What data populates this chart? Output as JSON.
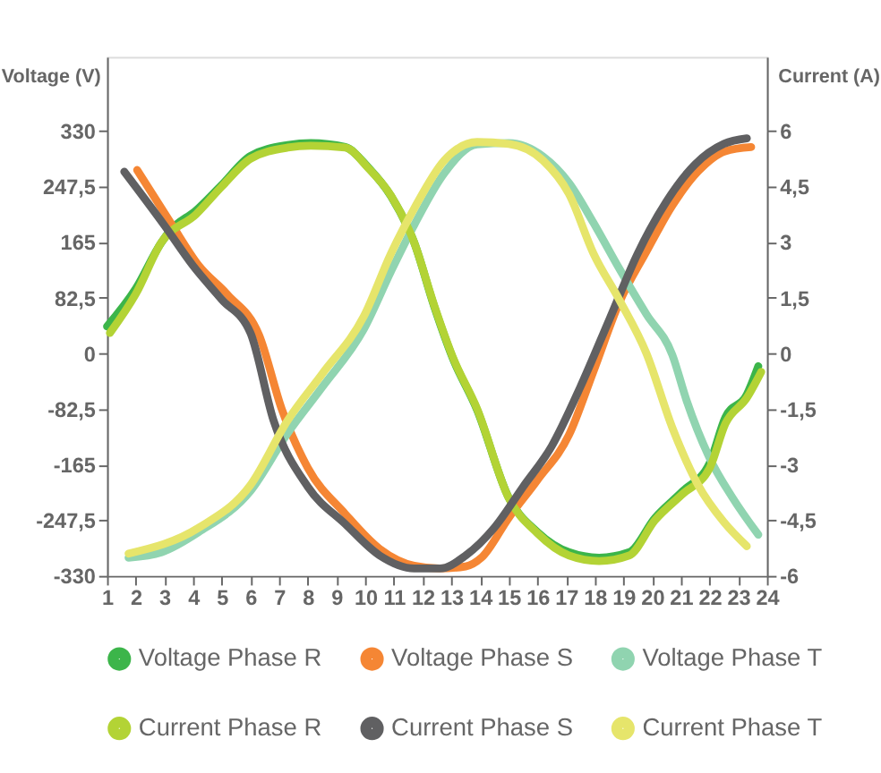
{
  "chart_data": {
    "type": "line",
    "ylabel": "Voltage (V)",
    "y2label": "Current (A)",
    "xlim": [
      1,
      24
    ],
    "xticks": [
      1,
      2,
      3,
      4,
      5,
      6,
      7,
      8,
      9,
      10,
      11,
      12,
      13,
      14,
      15,
      16,
      17,
      18,
      19,
      20,
      21,
      22,
      23,
      24
    ],
    "ylim": [
      -330,
      440
    ],
    "yticks": [
      -330,
      {
        "value": -247.5,
        "label": "-247,5"
      },
      -165,
      {
        "value": -82.5,
        "label": "-82,5"
      },
      0,
      {
        "value": 82.5,
        "label": "82,5"
      },
      165,
      {
        "value": 247.5,
        "label": "247,5"
      },
      330
    ],
    "y2lim": [
      -6,
      8
    ],
    "y2ticks": [
      -6,
      {
        "value": -4.5,
        "label": "-4,5"
      },
      -3,
      {
        "value": -1.5,
        "label": "-1,5"
      },
      0,
      {
        "value": 1.5,
        "label": "1,5"
      },
      3,
      {
        "value": 4.5,
        "label": "4,5"
      },
      6
    ],
    "grid": "y",
    "legend": "bottom",
    "marker": "none",
    "line_style": "solid",
    "series": [
      {
        "name": "Voltage Phase R",
        "color": "#3cb54a",
        "x": [
          1,
          2,
          2.9,
          3.2,
          4.1,
          5,
          6,
          7.3,
          8.1,
          9.3,
          10.1,
          10.9,
          11.7,
          12.4,
          13.05,
          13.9,
          15,
          16,
          17.1,
          18.15,
          19.2,
          20.1,
          21.05,
          22,
          22.55,
          23.3,
          23.7
        ],
        "values": [
          40,
          96,
          165,
          182,
          212,
          250,
          293,
          309,
          312,
          306,
          276,
          233,
          165,
          70,
          -7,
          -84,
          -214,
          -265,
          -295,
          -303,
          -295,
          -244,
          -205,
          -163,
          -95,
          -61,
          -19
        ]
      },
      {
        "name": "Voltage Phase S",
        "color": "#f58634",
        "x": [
          2.05,
          3.2,
          4.2,
          5.2,
          6.3,
          7.1,
          8,
          9.3,
          10.5,
          11.7,
          12.6,
          13.5,
          14.05,
          15,
          16,
          17.1,
          17.95,
          18.85,
          19.8,
          20.7,
          21.6,
          22.55,
          23.45
        ],
        "values": [
          272,
          195,
          130,
          87,
          27,
          -84,
          -170,
          -238,
          -290,
          -315,
          -319,
          -316,
          -303,
          -244,
          -188,
          -121,
          -27,
          75,
          151,
          219,
          270,
          300,
          306
        ]
      },
      {
        "name": "Voltage Phase T",
        "color": "#90d4b0",
        "x": [
          1.75,
          2.9,
          4.2,
          6,
          7.3,
          8.5,
          9.95,
          10.9,
          11.7,
          12.75,
          13.9,
          15,
          16.2,
          17.1,
          17.95,
          18.85,
          19.8,
          20.7,
          21.2,
          22,
          22.8,
          23.7
        ],
        "values": [
          -303,
          -295,
          -265,
          -204,
          -118,
          -50,
          36,
          122,
          190,
          267,
          310,
          312,
          292,
          253,
          194,
          126,
          58,
          -2,
          -70,
          -155,
          -214,
          -269
        ]
      },
      {
        "name": "Current Phase R",
        "color": "#b3d335",
        "axis": "y2",
        "x": [
          1.1,
          2,
          2.9,
          4.1,
          5,
          6,
          7.3,
          8.1,
          9.3,
          10.1,
          10.9,
          11.7,
          12.4,
          13.05,
          13.9,
          15,
          16,
          17.1,
          18.15,
          19.2,
          20.1,
          21.05,
          22,
          22.55,
          23.3,
          23.8
        ],
        "values": [
          0.55,
          1.6,
          3,
          3.75,
          4.5,
          5.25,
          5.55,
          5.6,
          5.55,
          5,
          4.25,
          3,
          1.3,
          -0.1,
          -1.5,
          -3.9,
          -4.85,
          -5.45,
          -5.6,
          -5.45,
          -4.5,
          -3.8,
          -3.1,
          -1.9,
          -1.2,
          -0.5
        ]
      },
      {
        "name": "Current Phase S",
        "color": "#606062",
        "axis": "y2",
        "x": [
          1.6,
          3,
          4,
          5,
          6,
          6.8,
          8,
          9.3,
          10.5,
          11.7,
          12.6,
          13.5,
          14.5,
          15.5,
          16.5,
          17.5,
          18.5,
          19.5,
          20.5,
          21.5,
          22.5,
          23.3
        ],
        "values": [
          4.9,
          3.45,
          2.36,
          1.45,
          0.55,
          -1.8,
          -3.6,
          -4.6,
          -5.45,
          -5.8,
          -5.8,
          -5.45,
          -4.7,
          -3.6,
          -2.5,
          -0.9,
          0.9,
          2.7,
          4.1,
          5.1,
          5.65,
          5.8
        ]
      },
      {
        "name": "Current Phase T",
        "color": "#e6e56b",
        "axis": "y2",
        "x": [
          1.75,
          4.2,
          6,
          7.3,
          8.5,
          9.95,
          10.9,
          11.7,
          12.75,
          13.9,
          15,
          16.2,
          17.1,
          17.95,
          18.85,
          19.8,
          20.7,
          21.6,
          22.5,
          23.3
        ],
        "values": [
          -5.4,
          -4.7,
          -3.55,
          -1.8,
          -0.55,
          1,
          2.7,
          3.9,
          5.2,
          5.7,
          5.65,
          5.2,
          4.3,
          2.7,
          1.45,
          0,
          -2,
          -3.55,
          -4.55,
          -5.2
        ]
      }
    ]
  }
}
